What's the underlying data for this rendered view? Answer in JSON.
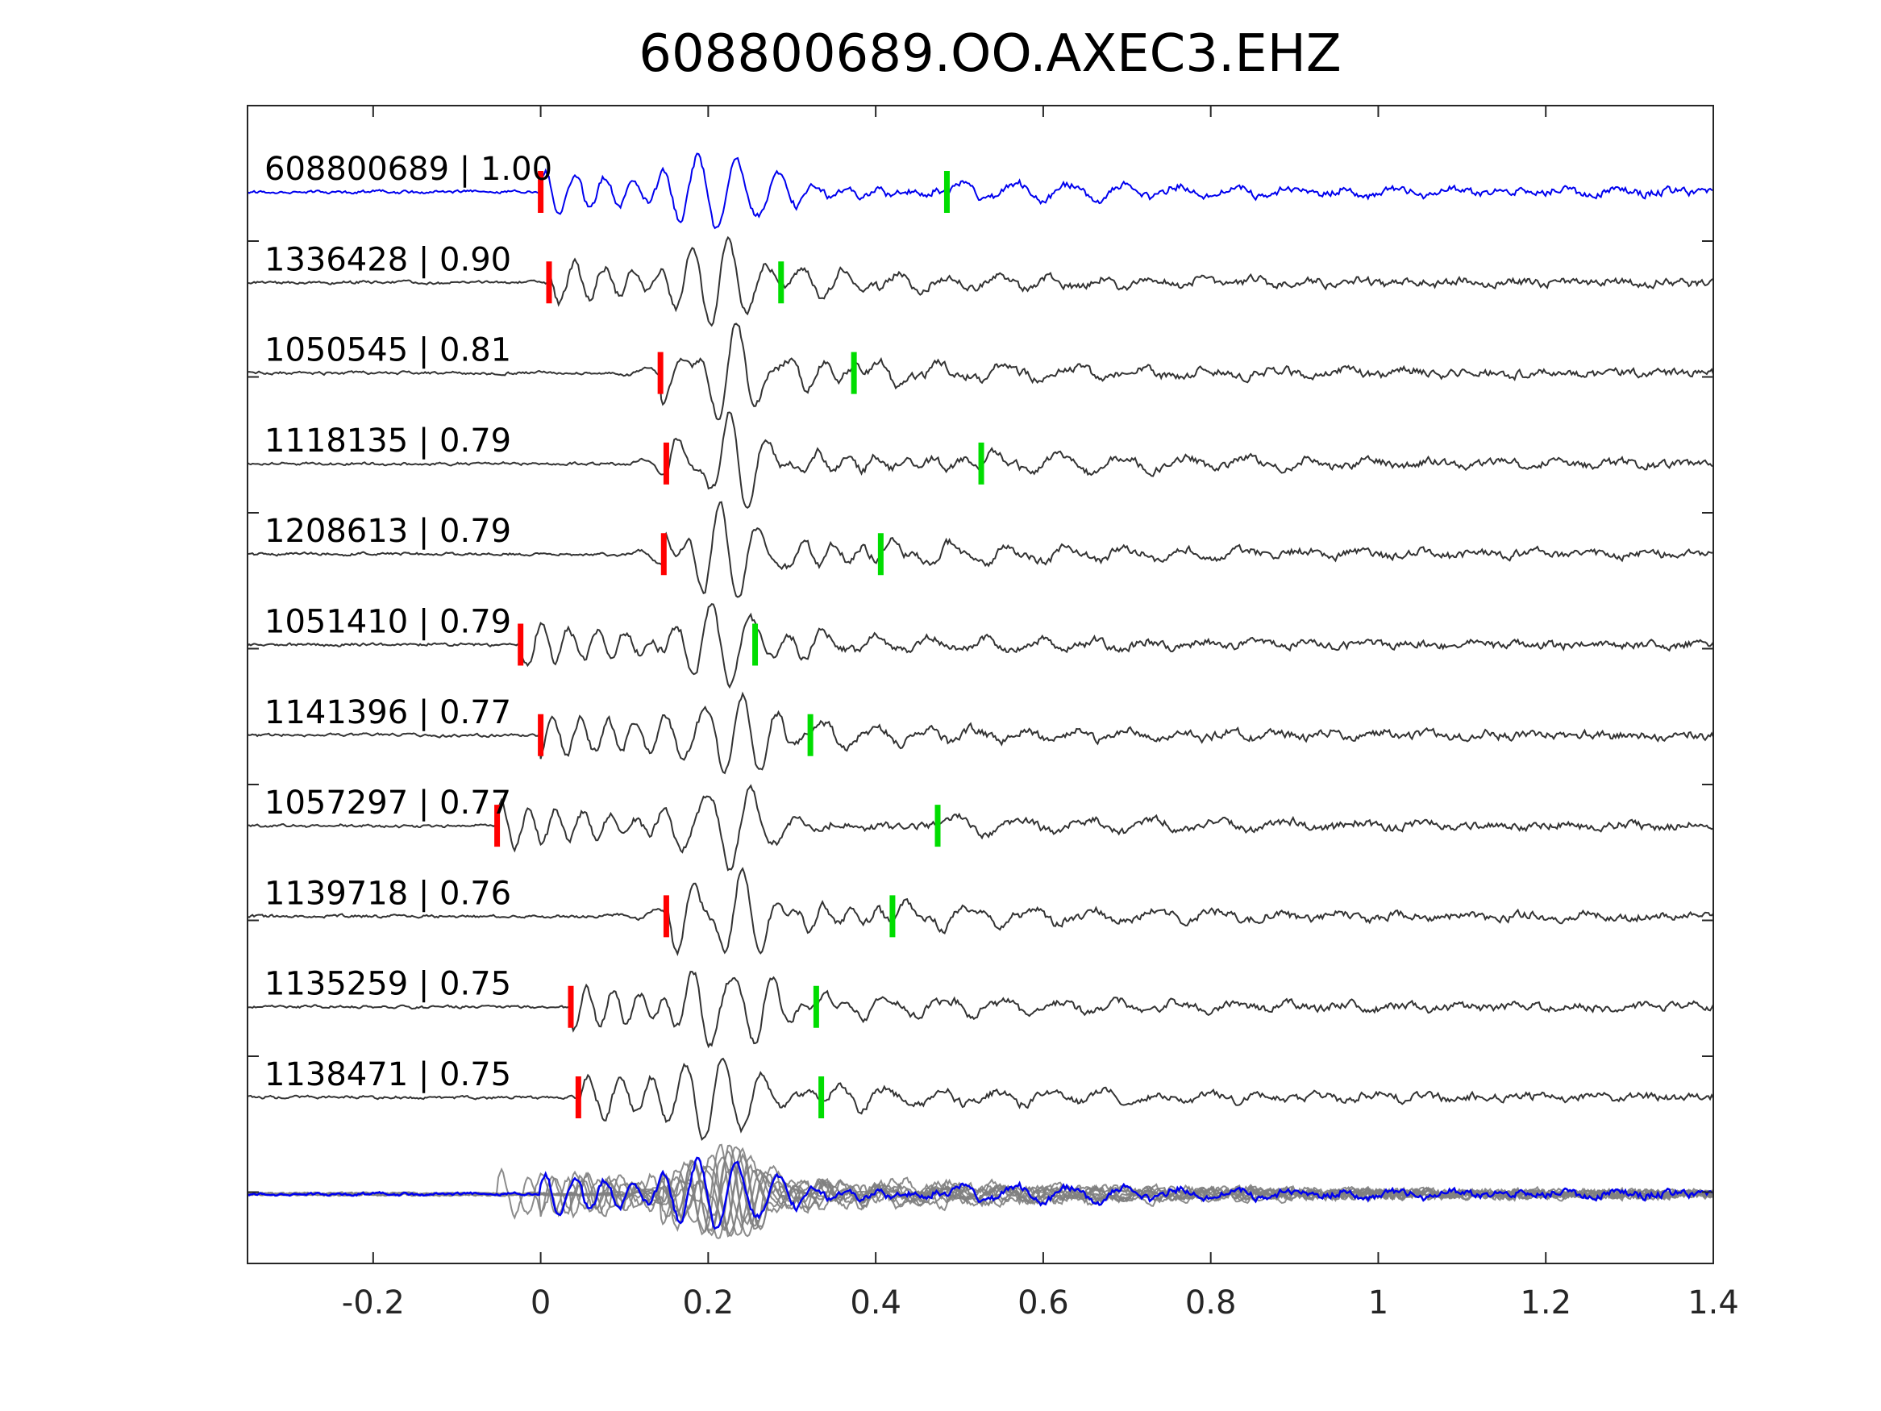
{
  "chart_data": {
    "type": "line",
    "title": "608800689.OO.AXEC3.EHZ",
    "xlabel": "",
    "ylabel": "",
    "xlim": [
      -0.35,
      1.4
    ],
    "xticks": [
      -0.2,
      0,
      0.2,
      0.4,
      0.6,
      0.8,
      1,
      1.2,
      1.4
    ],
    "xtick_labels": [
      "-0.2",
      "0",
      "0.2",
      "0.4",
      "0.6",
      "0.8",
      "1",
      "1.2",
      "1.4"
    ],
    "grid": false,
    "legend": "none",
    "colors": {
      "master": "#0000ee",
      "trace": "#333333",
      "stack": "#808080",
      "p_pick": "#ff0000",
      "s_pick": "#00dd00",
      "axes": "#262626"
    },
    "series": [
      {
        "label": "608800689 | 1.00",
        "p_pick": 0.0,
        "s_pick": 0.485
      },
      {
        "label": "1336428 | 0.90",
        "p_pick": 0.01,
        "s_pick": 0.287
      },
      {
        "label": "1050545 | 0.81",
        "p_pick": 0.143,
        "s_pick": 0.374
      },
      {
        "label": "1118135 | 0.79",
        "p_pick": 0.15,
        "s_pick": 0.526
      },
      {
        "label": "1208613 | 0.79",
        "p_pick": 0.147,
        "s_pick": 0.406
      },
      {
        "label": "1051410 | 0.79",
        "p_pick": -0.024,
        "s_pick": 0.256
      },
      {
        "label": "1141396 | 0.77",
        "p_pick": 0.0,
        "s_pick": 0.322
      },
      {
        "label": "1057297 | 0.77",
        "p_pick": -0.052,
        "s_pick": 0.474
      },
      {
        "label": "1139718 | 0.76",
        "p_pick": 0.15,
        "s_pick": 0.42
      },
      {
        "label": "1135259 | 0.75",
        "p_pick": 0.036,
        "s_pick": 0.329
      },
      {
        "label": "1138471 | 0.75",
        "p_pick": 0.045,
        "s_pick": 0.335
      }
    ]
  }
}
